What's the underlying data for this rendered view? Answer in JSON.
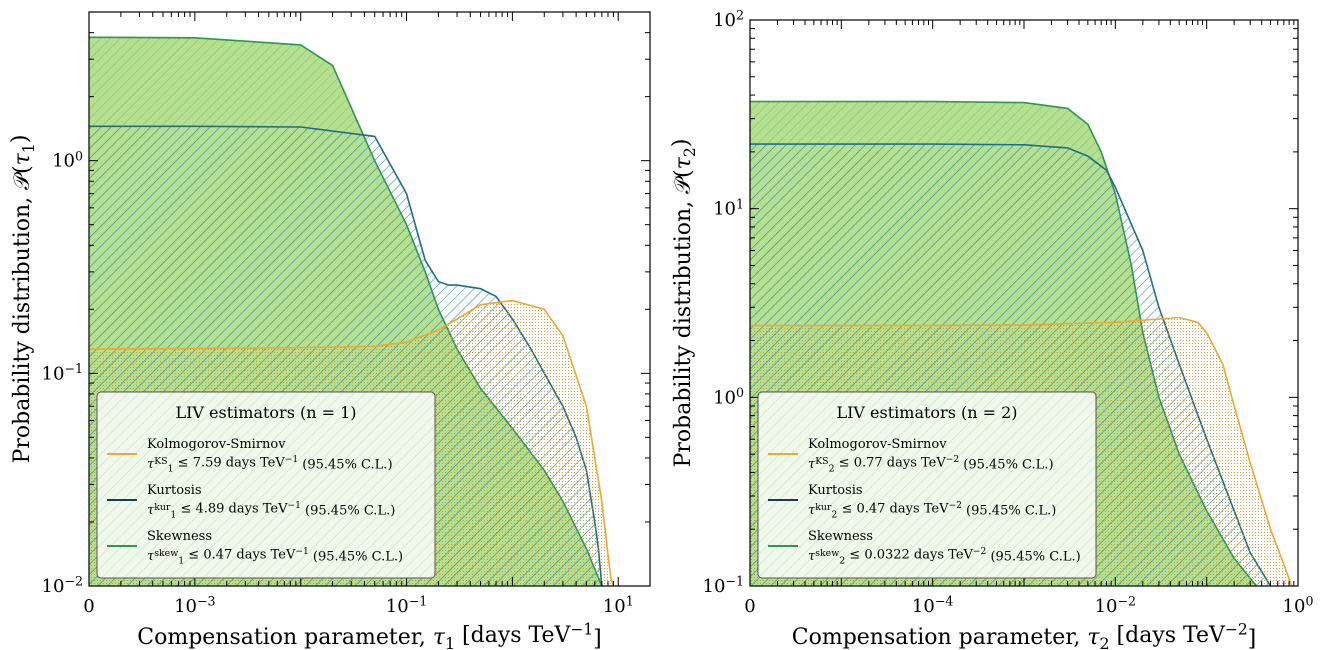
{
  "chart_data": [
    {
      "type": "area",
      "xscale": "symlog",
      "yscale": "log",
      "xlim": [
        0,
        20
      ],
      "ylim": [
        0.01,
        5
      ],
      "x_ticks": [
        "0",
        "10^-3",
        "10^-1",
        "10^1"
      ],
      "y_ticks": [
        "10^-2",
        "10^-1",
        "10^0"
      ],
      "xlabel": "Compensation parameter, τ1 [days TeV^-1]",
      "ylabel": "Probability distribution, 𝒫(τ1)",
      "legend_position": "lower-left",
      "legend": {
        "title": "LIV estimators (n = 1)",
        "entries": [
          {
            "name": "Kolmogorov-Smirnov",
            "bound": "τ1^KS ≤ 7.59 days TeV^-1 (95.45% C.L.)"
          },
          {
            "name": "Kurtosis",
            "bound": "τ1^kur ≤ 4.89 days TeV^-1 (95.45% C.L.)"
          },
          {
            "name": "Skewness",
            "bound": "τ1^skew ≤ 0.47 days TeV^-1 (95.45% C.L.)"
          }
        ]
      },
      "series": [
        {
          "name": "Kolmogorov-Smirnov",
          "color": "#f0a830",
          "fill": "dotted",
          "x": [
            0,
            0.0001,
            0.001,
            0.01,
            0.05,
            0.1,
            0.2,
            0.3,
            0.5,
            1,
            2,
            3,
            5,
            7,
            8,
            8.5,
            9
          ],
          "y": [
            0.13,
            0.13,
            0.131,
            0.132,
            0.134,
            0.14,
            0.16,
            0.18,
            0.21,
            0.22,
            0.2,
            0.15,
            0.07,
            0.025,
            0.014,
            0.011,
            0.01
          ]
        },
        {
          "name": "Kurtosis",
          "color": "#1f6f8b",
          "fill": "hatched",
          "x": [
            0,
            0.0001,
            0.001,
            0.01,
            0.05,
            0.1,
            0.15,
            0.2,
            0.25,
            0.3,
            0.5,
            0.7,
            1,
            1.5,
            2,
            3,
            4,
            5,
            6,
            6.5,
            7
          ],
          "y": [
            1.45,
            1.45,
            1.45,
            1.44,
            1.3,
            0.7,
            0.34,
            0.27,
            0.26,
            0.26,
            0.25,
            0.23,
            0.18,
            0.13,
            0.1,
            0.07,
            0.05,
            0.035,
            0.02,
            0.015,
            0.01
          ]
        },
        {
          "name": "Skewness",
          "color": "#2a9a47",
          "fill": "solid",
          "x": [
            0,
            0.0001,
            0.001,
            0.01,
            0.02,
            0.05,
            0.1,
            0.15,
            0.2,
            0.3,
            0.5,
            1,
            2,
            3,
            5,
            6,
            7
          ],
          "y": [
            3.8,
            3.8,
            3.78,
            3.5,
            2.8,
            1.0,
            0.5,
            0.3,
            0.2,
            0.13,
            0.085,
            0.055,
            0.035,
            0.025,
            0.015,
            0.012,
            0.01
          ]
        }
      ]
    },
    {
      "type": "area",
      "xscale": "symlog",
      "yscale": "log",
      "xlim": [
        0,
        1
      ],
      "ylim": [
        0.1,
        100
      ],
      "x_ticks": [
        "0",
        "10^-4",
        "10^-2",
        "10^0"
      ],
      "y_ticks": [
        "10^-1",
        "10^0",
        "10^1",
        "10^2"
      ],
      "xlabel": "Compensation parameter, τ2 [days TeV^-2]",
      "ylabel": "Probability distribution, 𝒫(τ2)",
      "legend_position": "lower-left",
      "legend": {
        "title": "LIV estimators (n = 2)",
        "entries": [
          {
            "name": "Kolmogorov-Smirnov",
            "bound": "τ2^KS ≤ 0.77 days TeV^-2 (95.45% C.L.)"
          },
          {
            "name": "Kurtosis",
            "bound": "τ2^kur ≤ 0.47 days TeV^-2 (95.45% C.L.)"
          },
          {
            "name": "Skewness",
            "bound": "τ2^skew ≤ 0.0322 days TeV^-2 (95.45% C.L.)"
          }
        ]
      },
      "series": [
        {
          "name": "Kolmogorov-Smirnov",
          "color": "#f0a830",
          "fill": "dotted",
          "x": [
            0,
            1e-05,
            0.0001,
            0.001,
            0.01,
            0.03,
            0.05,
            0.08,
            0.1,
            0.15,
            0.2,
            0.3,
            0.5,
            0.7,
            0.85
          ],
          "y": [
            2.4,
            2.4,
            2.4,
            2.42,
            2.5,
            2.6,
            2.65,
            2.5,
            2.2,
            1.5,
            0.9,
            0.45,
            0.2,
            0.13,
            0.1
          ]
        },
        {
          "name": "Kurtosis",
          "color": "#1f6f8b",
          "fill": "hatched",
          "x": [
            0,
            1e-05,
            0.0001,
            0.001,
            0.003,
            0.005,
            0.008,
            0.01,
            0.02,
            0.03,
            0.05,
            0.1,
            0.2,
            0.3,
            0.5
          ],
          "y": [
            22,
            22,
            22,
            21.8,
            21,
            19,
            16,
            13,
            6,
            3,
            1.5,
            0.6,
            0.25,
            0.15,
            0.1
          ]
        },
        {
          "name": "Skewness",
          "color": "#2a9a47",
          "fill": "solid",
          "x": [
            0,
            1e-05,
            0.0001,
            0.001,
            0.003,
            0.005,
            0.007,
            0.01,
            0.015,
            0.02,
            0.03,
            0.05,
            0.1,
            0.2,
            0.35
          ],
          "y": [
            37,
            37,
            37,
            36.5,
            34,
            28,
            20,
            12,
            5,
            2.2,
            1.0,
            0.5,
            0.25,
            0.14,
            0.1
          ]
        }
      ]
    }
  ]
}
